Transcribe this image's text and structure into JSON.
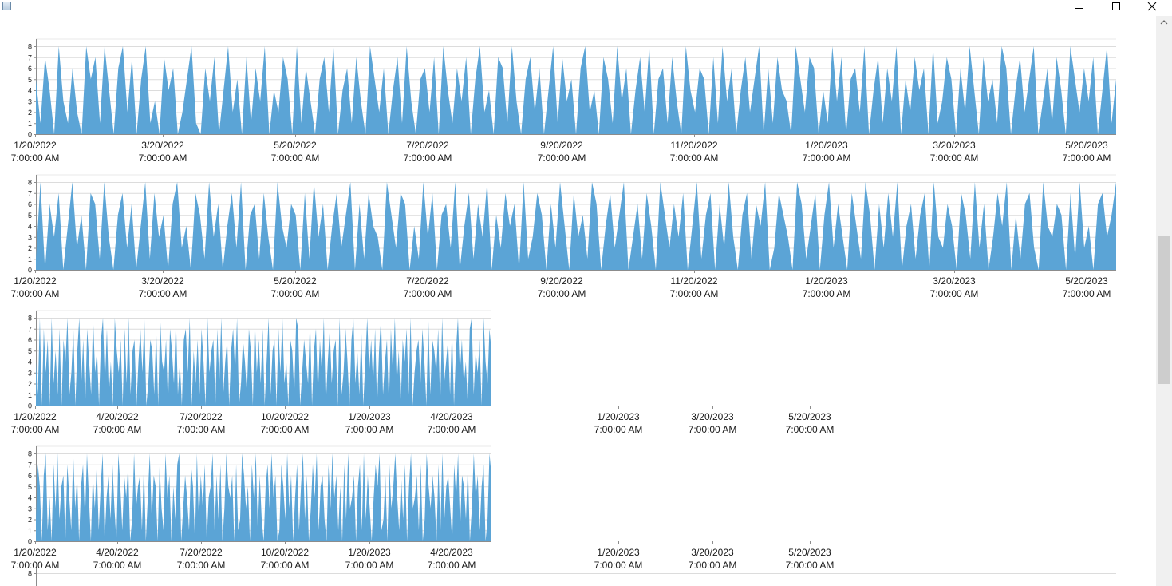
{
  "window": {
    "icons": {
      "app": "app-window-icon",
      "minimize": "minimize-icon",
      "maximize": "maximize-icon",
      "close": "close-icon"
    }
  },
  "colors": {
    "series": "#5ba4d6",
    "axis": "#8c8c8c",
    "grid": "#dcdcdc"
  },
  "chart_data": [
    {
      "type": "area",
      "y_ticks": [
        "0",
        "1",
        "2",
        "3",
        "4",
        "5",
        "6",
        "7",
        "8"
      ],
      "ylim": [
        0,
        8
      ],
      "x_labels": [
        {
          "date": "1/20/2022",
          "time": "7:00:00 AM"
        },
        {
          "date": "3/20/2022",
          "time": "7:00:00 AM"
        },
        {
          "date": "5/20/2022",
          "time": "7:00:00 AM"
        },
        {
          "date": "7/20/2022",
          "time": "7:00:00 AM"
        },
        {
          "date": "9/20/2022",
          "time": "7:00:00 AM"
        },
        {
          "date": "11/20/2022",
          "time": "7:00:00 AM"
        },
        {
          "date": "1/20/2023",
          "time": "7:00:00 AM"
        },
        {
          "date": "3/20/2023",
          "time": "7:00:00 AM"
        },
        {
          "date": "5/20/2023",
          "time": "7:00:00 AM"
        }
      ],
      "values": [
        5,
        1,
        7,
        4,
        0,
        8,
        3,
        1,
        6,
        2,
        0,
        8,
        5,
        7,
        1,
        8,
        4,
        0,
        6,
        8,
        2,
        7,
        0,
        5,
        8,
        1,
        3,
        0,
        7,
        4,
        6,
        0,
        2,
        5,
        8,
        1,
        0,
        6,
        3,
        7,
        0,
        4,
        8,
        2,
        5,
        0,
        7,
        1,
        6,
        3,
        8,
        0,
        4,
        2,
        7,
        5,
        0,
        8,
        1,
        6,
        3,
        0,
        5,
        7,
        2,
        8,
        0,
        4,
        6,
        1,
        7,
        3,
        0,
        8,
        5,
        2,
        6,
        0,
        4,
        7,
        1,
        8,
        3,
        0,
        5,
        6,
        2,
        7,
        0,
        8,
        4,
        1,
        6,
        3,
        7,
        0,
        5,
        8,
        2,
        4,
        0,
        7,
        6,
        1,
        8,
        3,
        0,
        5,
        7,
        2,
        6,
        0,
        4,
        8,
        1,
        7,
        3,
        5,
        0,
        6,
        8,
        2,
        4,
        0,
        7,
        5,
        1,
        8,
        3,
        6,
        0,
        4,
        7,
        2,
        8,
        0,
        5,
        6,
        1,
        7,
        3,
        0,
        8,
        4,
        2,
        6,
        5,
        0,
        7,
        1,
        8,
        3,
        6,
        0,
        4,
        7,
        2,
        5,
        8,
        0,
        6,
        1,
        7,
        4,
        3,
        0,
        8,
        5,
        2,
        7,
        6,
        0,
        4,
        1,
        8,
        3,
        7,
        0,
        5,
        6,
        2,
        8,
        0,
        4,
        7,
        1,
        6,
        3,
        8,
        0,
        5,
        2,
        7,
        4,
        6,
        0,
        8,
        1,
        3,
        7,
        5,
        0,
        6,
        2,
        8,
        4,
        0,
        7,
        3,
        5,
        1,
        8,
        6,
        0,
        4,
        7,
        2,
        5,
        8,
        0,
        3,
        6,
        1,
        7,
        4,
        0,
        8,
        5,
        2,
        6,
        3,
        7,
        0,
        4,
        8,
        1,
        5
      ]
    },
    {
      "type": "area",
      "y_ticks": [
        "0",
        "1",
        "2",
        "3",
        "4",
        "5",
        "6",
        "7",
        "8"
      ],
      "ylim": [
        0,
        8
      ],
      "x_labels": [
        {
          "date": "1/20/2022",
          "time": "7:00:00 AM"
        },
        {
          "date": "3/20/2022",
          "time": "7:00:00 AM"
        },
        {
          "date": "5/20/2022",
          "time": "7:00:00 AM"
        },
        {
          "date": "7/20/2022",
          "time": "7:00:00 AM"
        },
        {
          "date": "9/20/2022",
          "time": "7:00:00 AM"
        },
        {
          "date": "11/20/2022",
          "time": "7:00:00 AM"
        },
        {
          "date": "1/20/2023",
          "time": "7:00:00 AM"
        },
        {
          "date": "3/20/2023",
          "time": "7:00:00 AM"
        },
        {
          "date": "5/20/2023",
          "time": "7:00:00 AM"
        }
      ],
      "values": [
        1,
        8,
        0,
        6,
        3,
        7,
        0,
        4,
        8,
        2,
        5,
        0,
        7,
        6,
        1,
        8,
        3,
        0,
        5,
        7,
        2,
        6,
        0,
        4,
        8,
        1,
        7,
        3,
        5,
        0,
        6,
        8,
        2,
        4,
        0,
        7,
        5,
        1,
        8,
        3,
        6,
        0,
        4,
        7,
        2,
        8,
        0,
        5,
        6,
        1,
        7,
        3,
        0,
        8,
        4,
        2,
        6,
        5,
        0,
        7,
        1,
        8,
        3,
        6,
        0,
        4,
        7,
        2,
        5,
        8,
        0,
        6,
        1,
        7,
        4,
        3,
        0,
        8,
        5,
        2,
        7,
        6,
        0,
        4,
        1,
        8,
        3,
        7,
        0,
        5,
        6,
        2,
        8,
        0,
        4,
        7,
        1,
        6,
        3,
        8,
        0,
        5,
        2,
        7,
        4,
        6,
        0,
        8,
        1,
        3,
        7,
        5,
        0,
        6,
        2,
        8,
        4,
        0,
        7,
        3,
        5,
        1,
        8,
        6,
        0,
        4,
        7,
        2,
        5,
        8,
        0,
        3,
        6,
        1,
        7,
        4,
        0,
        8,
        5,
        2,
        6,
        3,
        7,
        0,
        4,
        8,
        1,
        5,
        7,
        0,
        6,
        2,
        8,
        3,
        0,
        5,
        7,
        1,
        6,
        4,
        8,
        0,
        2,
        7,
        5,
        3,
        0,
        8,
        6,
        1,
        4,
        7,
        0,
        5,
        8,
        2,
        6,
        3,
        0,
        7,
        4,
        1,
        8,
        5,
        0,
        6,
        2,
        7,
        3,
        8,
        0,
        4,
        6,
        1,
        5,
        7,
        0,
        8,
        3,
        2,
        6,
        4,
        0,
        7,
        5,
        1,
        8,
        2,
        6,
        0,
        3,
        7,
        4,
        8,
        0,
        5,
        1,
        6,
        7,
        2,
        0,
        8,
        4,
        3,
        6,
        5,
        0,
        7,
        1,
        8,
        2,
        4,
        0,
        6,
        7,
        3,
        5,
        8
      ]
    },
    {
      "type": "area",
      "y_ticks": [
        "0",
        "1",
        "2",
        "3",
        "4",
        "5",
        "6",
        "7",
        "8"
      ],
      "ylim": [
        0,
        8
      ],
      "x_labels": [
        {
          "date": "1/20/2022",
          "time": "7:00:00 AM"
        },
        {
          "date": "4/20/2022",
          "time": "7:00:00 AM"
        },
        {
          "date": "7/20/2022",
          "time": "7:00:00 AM"
        },
        {
          "date": "10/20/2022",
          "time": "7:00:00 AM"
        },
        {
          "date": "1/20/2023",
          "time": "7:00:00 AM"
        },
        {
          "date": "4/20/2023",
          "time": "7:00:00 AM"
        }
      ],
      "extra_labels": [
        {
          "date": "1/20/2023",
          "time": "7:00:00 AM"
        },
        {
          "date": "3/20/2023",
          "time": "7:00:00 AM"
        },
        {
          "date": "5/20/2023",
          "time": "7:00:00 AM"
        }
      ],
      "values": [
        4,
        1,
        8,
        0,
        7,
        3,
        6,
        0,
        8,
        2,
        5,
        1,
        7,
        0,
        6,
        4,
        8,
        1,
        3,
        7,
        0,
        5,
        8,
        2,
        6,
        0,
        7,
        4,
        1,
        8,
        3,
        5,
        0,
        6,
        8,
        2,
        7,
        1,
        4,
        0,
        8,
        5,
        3,
        6,
        0,
        7,
        2,
        8,
        1,
        5,
        6,
        0,
        4,
        7,
        3,
        8,
        0,
        2,
        6,
        5,
        1,
        7,
        0,
        8,
        4,
        3,
        6,
        0,
        7,
        5,
        2,
        8,
        1,
        4,
        0,
        6,
        7,
        3,
        8,
        0,
        5,
        2,
        6,
        1,
        7,
        4,
        0,
        8,
        3,
        5,
        6,
        0,
        7,
        2,
        8,
        1,
        4,
        6,
        0,
        5,
        7,
        3,
        8,
        0,
        2,
        6,
        4,
        1,
        7,
        5,
        0,
        8,
        3,
        6,
        2,
        7,
        0,
        4,
        8,
        1,
        5,
        6,
        0,
        7,
        3,
        8,
        2,
        4,
        0,
        6,
        5,
        1,
        8,
        7,
        0,
        3,
        6,
        4,
        2,
        8,
        0,
        5,
        7,
        1,
        6,
        3,
        8,
        0,
        4,
        7,
        2,
        5,
        6,
        0,
        8,
        1,
        3,
        7,
        4,
        0,
        6,
        8,
        2,
        5,
        1,
        7,
        0,
        4,
        8,
        3,
        6,
        2,
        7,
        0,
        5,
        8,
        1,
        4,
        6,
        0,
        7,
        3,
        8,
        2,
        5,
        0,
        6,
        4,
        7,
        1,
        8,
        0,
        3,
        5,
        6,
        2,
        7,
        4,
        0,
        8,
        1,
        6,
        5,
        3,
        7,
        0,
        8,
        2,
        4,
        6,
        1,
        7,
        0,
        5,
        8,
        3,
        6,
        2,
        4,
        0,
        7,
        8,
        1,
        5,
        3,
        6,
        0,
        8,
        4,
        2,
        7,
        5
      ]
    },
    {
      "type": "area",
      "y_ticks": [
        "0",
        "1",
        "2",
        "3",
        "4",
        "5",
        "6",
        "7",
        "8"
      ],
      "ylim": [
        0,
        8
      ],
      "x_labels": [
        {
          "date": "1/20/2022",
          "time": "7:00:00 AM"
        },
        {
          "date": "4/20/2022",
          "time": "7:00:00 AM"
        },
        {
          "date": "7/20/2022",
          "time": "7:00:00 AM"
        },
        {
          "date": "10/20/2022",
          "time": "7:00:00 AM"
        },
        {
          "date": "1/20/2023",
          "time": "7:00:00 AM"
        },
        {
          "date": "4/20/2023",
          "time": "7:00:00 AM"
        }
      ],
      "extra_labels": [
        {
          "date": "1/20/2023",
          "time": "7:00:00 AM"
        },
        {
          "date": "3/20/2023",
          "time": "7:00:00 AM"
        },
        {
          "date": "5/20/2023",
          "time": "7:00:00 AM"
        }
      ],
      "values": [
        2,
        7,
        5,
        0,
        6,
        8,
        1,
        4,
        0,
        7,
        3,
        8,
        2,
        5,
        6,
        0,
        7,
        4,
        1,
        8,
        3,
        6,
        0,
        5,
        7,
        2,
        8,
        4,
        0,
        6,
        3,
        7,
        1,
        5,
        8,
        0,
        4,
        6,
        2,
        7,
        3,
        0,
        8,
        5,
        1,
        6,
        4,
        7,
        0,
        2,
        8,
        3,
        5,
        6,
        1,
        7,
        0,
        4,
        8,
        2,
        6,
        5,
        0,
        7,
        3,
        1,
        8,
        4,
        6,
        0,
        5,
        2,
        7,
        8,
        0,
        3,
        6,
        4,
        1,
        7,
        5,
        0,
        8,
        2,
        6,
        3,
        7,
        0,
        4,
        5,
        8,
        1,
        6,
        2,
        7,
        0,
        3,
        8,
        5,
        4,
        6,
        0,
        7,
        1,
        2,
        8,
        6,
        3,
        5,
        0,
        7,
        4,
        8,
        1,
        6,
        2,
        0,
        5,
        7,
        3,
        8,
        4,
        6,
        0,
        1,
        7,
        5,
        2,
        8,
        3,
        6,
        0,
        4,
        7,
        1,
        5,
        8,
        2,
        6,
        0,
        3,
        7,
        4,
        8,
        1,
        5,
        6,
        2,
        0,
        7,
        3,
        8,
        4,
        6,
        1,
        5,
        0,
        7,
        2,
        8,
        3,
        4,
        6,
        0,
        5,
        7,
        1,
        8,
        2,
        6,
        3,
        0,
        4,
        7,
        5,
        8,
        1,
        2,
        6,
        0,
        7,
        3,
        5,
        8,
        4,
        1,
        6,
        2,
        7,
        0,
        5,
        8,
        3,
        4,
        6,
        1,
        7,
        0,
        2,
        8,
        5,
        3,
        6,
        4,
        0,
        7,
        1,
        8,
        2,
        5,
        6,
        3,
        0,
        7,
        4,
        8,
        1,
        6,
        5,
        2,
        7,
        0,
        3,
        8,
        4,
        6,
        1,
        5,
        7,
        0,
        2,
        8,
        6
      ]
    },
    {
      "type": "area",
      "y_ticks": [
        "8"
      ],
      "ylim": [
        0,
        8
      ],
      "x_labels": [],
      "values": []
    }
  ]
}
